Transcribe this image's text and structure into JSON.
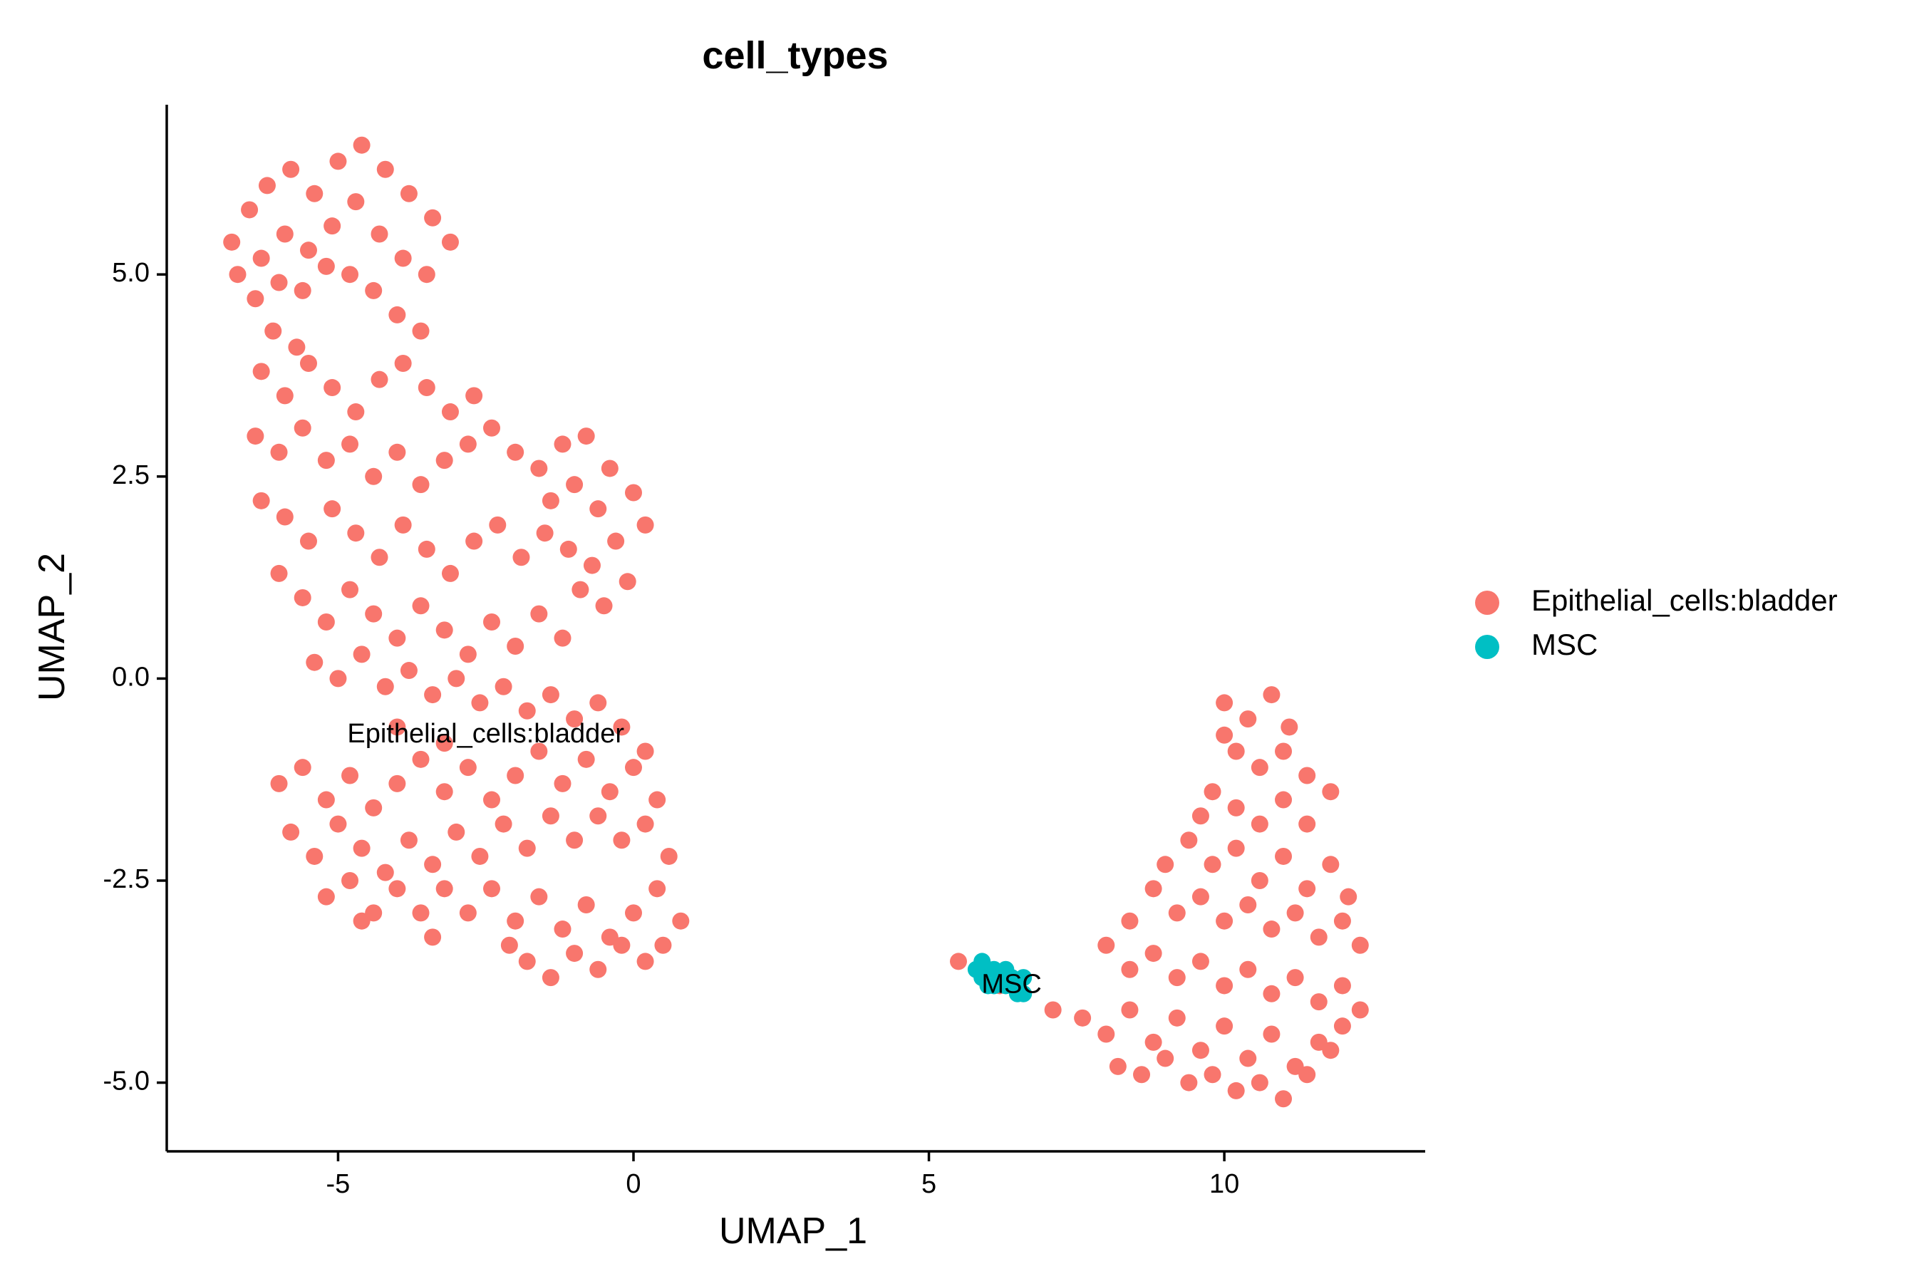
{
  "chart_data": {
    "type": "scatter",
    "title": "cell_types",
    "xlabel": "UMAP_1",
    "ylabel": "UMAP_2",
    "xlim": [
      -7.9,
      13.4
    ],
    "ylim": [
      -5.85,
      7.1
    ],
    "x_ticks": [
      {
        "value": -5,
        "label": "-5"
      },
      {
        "value": 0,
        "label": "0"
      },
      {
        "value": 5,
        "label": "5"
      },
      {
        "value": 10,
        "label": "10"
      }
    ],
    "y_ticks": [
      {
        "value": -5,
        "label": "-5.0"
      },
      {
        "value": -2.5,
        "label": "-2.5"
      },
      {
        "value": 0,
        "label": "0.0"
      },
      {
        "value": 2.5,
        "label": "2.5"
      },
      {
        "value": 5,
        "label": "5.0"
      }
    ],
    "grid": false,
    "legend_position": "right",
    "series": [
      {
        "name": "Epithelial_cells:bladder",
        "color": "#F8766D",
        "label": {
          "text": "Epithelial_cells:bladder",
          "x": -2.5,
          "y": -0.7
        },
        "points": [
          [
            -6.8,
            5.4
          ],
          [
            -6.5,
            5.8
          ],
          [
            -6.2,
            6.1
          ],
          [
            -5.8,
            6.3
          ],
          [
            -5.4,
            6.0
          ],
          [
            -5.0,
            6.4
          ],
          [
            -4.6,
            6.6
          ],
          [
            -4.2,
            6.3
          ],
          [
            -3.8,
            6.0
          ],
          [
            -3.4,
            5.7
          ],
          [
            -6.7,
            5.0
          ],
          [
            -6.3,
            5.2
          ],
          [
            -5.9,
            5.5
          ],
          [
            -5.5,
            5.3
          ],
          [
            -5.1,
            5.6
          ],
          [
            -4.7,
            5.9
          ],
          [
            -4.3,
            5.5
          ],
          [
            -3.9,
            5.2
          ],
          [
            -3.5,
            5.0
          ],
          [
            -3.1,
            5.4
          ],
          [
            -6.4,
            4.7
          ],
          [
            -6.0,
            4.9
          ],
          [
            -5.6,
            4.8
          ],
          [
            -5.2,
            5.1
          ],
          [
            -4.8,
            5.0
          ],
          [
            -4.4,
            4.8
          ],
          [
            -4.0,
            4.5
          ],
          [
            -3.6,
            4.3
          ],
          [
            -6.1,
            4.3
          ],
          [
            -5.7,
            4.1
          ],
          [
            -6.3,
            3.8
          ],
          [
            -5.9,
            3.5
          ],
          [
            -5.5,
            3.9
          ],
          [
            -5.1,
            3.6
          ],
          [
            -4.7,
            3.3
          ],
          [
            -4.3,
            3.7
          ],
          [
            -3.9,
            3.9
          ],
          [
            -3.5,
            3.6
          ],
          [
            -3.1,
            3.3
          ],
          [
            -2.7,
            3.5
          ],
          [
            -6.4,
            3.0
          ],
          [
            -6.0,
            2.8
          ],
          [
            -5.6,
            3.1
          ],
          [
            -5.2,
            2.7
          ],
          [
            -4.8,
            2.9
          ],
          [
            -4.4,
            2.5
          ],
          [
            -4.0,
            2.8
          ],
          [
            -3.6,
            2.4
          ],
          [
            -3.2,
            2.7
          ],
          [
            -2.8,
            2.9
          ],
          [
            -2.4,
            3.1
          ],
          [
            -2.0,
            2.8
          ],
          [
            -1.6,
            2.6
          ],
          [
            -1.2,
            2.9
          ],
          [
            -0.8,
            3.0
          ],
          [
            -0.4,
            2.6
          ],
          [
            0.0,
            2.3
          ],
          [
            -0.6,
            2.1
          ],
          [
            -1.0,
            2.4
          ],
          [
            -1.4,
            2.2
          ],
          [
            -6.3,
            2.2
          ],
          [
            -5.9,
            2.0
          ],
          [
            -5.5,
            1.7
          ],
          [
            -5.1,
            2.1
          ],
          [
            -4.7,
            1.8
          ],
          [
            -4.3,
            1.5
          ],
          [
            -3.9,
            1.9
          ],
          [
            -3.5,
            1.6
          ],
          [
            -3.1,
            1.3
          ],
          [
            -2.7,
            1.7
          ],
          [
            -2.3,
            1.9
          ],
          [
            -1.9,
            1.5
          ],
          [
            -1.5,
            1.8
          ],
          [
            -1.1,
            1.6
          ],
          [
            -0.7,
            1.4
          ],
          [
            -0.3,
            1.7
          ],
          [
            0.2,
            1.9
          ],
          [
            -0.1,
            1.2
          ],
          [
            -0.5,
            0.9
          ],
          [
            -0.9,
            1.1
          ],
          [
            -6.0,
            1.3
          ],
          [
            -5.6,
            1.0
          ],
          [
            -5.2,
            0.7
          ],
          [
            -4.8,
            1.1
          ],
          [
            -4.4,
            0.8
          ],
          [
            -4.0,
            0.5
          ],
          [
            -3.6,
            0.9
          ],
          [
            -3.2,
            0.6
          ],
          [
            -2.8,
            0.3
          ],
          [
            -2.4,
            0.7
          ],
          [
            -2.0,
            0.4
          ],
          [
            -1.6,
            0.8
          ],
          [
            -1.2,
            0.5
          ],
          [
            -5.4,
            0.2
          ],
          [
            -5.0,
            0.0
          ],
          [
            -4.6,
            0.3
          ],
          [
            -4.2,
            -0.1
          ],
          [
            -3.8,
            0.1
          ],
          [
            -3.4,
            -0.2
          ],
          [
            -3.0,
            0.0
          ],
          [
            -2.6,
            -0.3
          ],
          [
            -2.2,
            -0.1
          ],
          [
            -1.8,
            -0.4
          ],
          [
            -1.4,
            -0.2
          ],
          [
            -1.0,
            -0.5
          ],
          [
            -0.6,
            -0.3
          ],
          [
            -0.2,
            -0.6
          ],
          [
            0.2,
            -0.9
          ],
          [
            -4.0,
            -0.6
          ],
          [
            -3.2,
            -0.8
          ],
          [
            -6.0,
            -1.3
          ],
          [
            -5.6,
            -1.1
          ],
          [
            -5.2,
            -1.5
          ],
          [
            -4.8,
            -1.2
          ],
          [
            -4.4,
            -1.6
          ],
          [
            -4.0,
            -1.3
          ],
          [
            -3.6,
            -1.0
          ],
          [
            -3.2,
            -1.4
          ],
          [
            -2.8,
            -1.1
          ],
          [
            -2.4,
            -1.5
          ],
          [
            -2.0,
            -1.2
          ],
          [
            -1.6,
            -0.9
          ],
          [
            -1.2,
            -1.3
          ],
          [
            -0.8,
            -1.0
          ],
          [
            -0.4,
            -1.4
          ],
          [
            0.0,
            -1.1
          ],
          [
            0.4,
            -1.5
          ],
          [
            -5.8,
            -1.9
          ],
          [
            -5.4,
            -2.2
          ],
          [
            -5.0,
            -1.8
          ],
          [
            -4.6,
            -2.1
          ],
          [
            -4.2,
            -2.4
          ],
          [
            -3.8,
            -2.0
          ],
          [
            -3.4,
            -2.3
          ],
          [
            -3.0,
            -1.9
          ],
          [
            -2.6,
            -2.2
          ],
          [
            -2.2,
            -1.8
          ],
          [
            -1.8,
            -2.1
          ],
          [
            -1.4,
            -1.7
          ],
          [
            -1.0,
            -2.0
          ],
          [
            -0.6,
            -1.7
          ],
          [
            -0.2,
            -2.0
          ],
          [
            0.2,
            -1.8
          ],
          [
            0.6,
            -2.2
          ],
          [
            -5.2,
            -2.7
          ],
          [
            -4.8,
            -2.5
          ],
          [
            -4.4,
            -2.9
          ],
          [
            -4.0,
            -2.6
          ],
          [
            -3.6,
            -2.9
          ],
          [
            -3.2,
            -2.6
          ],
          [
            -2.8,
            -2.9
          ],
          [
            -2.4,
            -2.6
          ],
          [
            -2.0,
            -3.0
          ],
          [
            -1.6,
            -2.7
          ],
          [
            -1.2,
            -3.1
          ],
          [
            -0.8,
            -2.8
          ],
          [
            -0.4,
            -3.2
          ],
          [
            0.0,
            -2.9
          ],
          [
            0.4,
            -2.6
          ],
          [
            0.8,
            -3.0
          ],
          [
            -1.8,
            -3.5
          ],
          [
            -1.4,
            -3.7
          ],
          [
            -1.0,
            -3.4
          ],
          [
            -0.6,
            -3.6
          ],
          [
            -0.2,
            -3.3
          ],
          [
            0.2,
            -3.5
          ],
          [
            0.5,
            -3.3
          ],
          [
            -2.1,
            -3.3
          ],
          [
            -4.6,
            -3.0
          ],
          [
            -3.4,
            -3.2
          ],
          [
            5.5,
            -3.5
          ],
          [
            6.2,
            -3.8
          ],
          [
            7.1,
            -4.1
          ],
          [
            10.0,
            -0.3
          ],
          [
            10.4,
            -0.5
          ],
          [
            10.8,
            -0.2
          ],
          [
            11.1,
            -0.6
          ],
          [
            10.2,
            -0.9
          ],
          [
            10.6,
            -1.1
          ],
          [
            11.0,
            -0.9
          ],
          [
            11.4,
            -1.2
          ],
          [
            9.8,
            -1.4
          ],
          [
            10.2,
            -1.6
          ],
          [
            10.6,
            -1.8
          ],
          [
            11.0,
            -1.5
          ],
          [
            11.4,
            -1.8
          ],
          [
            11.8,
            -1.4
          ],
          [
            9.4,
            -2.0
          ],
          [
            9.8,
            -2.3
          ],
          [
            10.2,
            -2.1
          ],
          [
            10.6,
            -2.5
          ],
          [
            11.0,
            -2.2
          ],
          [
            11.4,
            -2.6
          ],
          [
            11.8,
            -2.3
          ],
          [
            12.1,
            -2.7
          ],
          [
            8.8,
            -2.6
          ],
          [
            9.2,
            -2.9
          ],
          [
            9.6,
            -2.7
          ],
          [
            10.0,
            -3.0
          ],
          [
            10.4,
            -2.8
          ],
          [
            10.8,
            -3.1
          ],
          [
            11.2,
            -2.9
          ],
          [
            11.6,
            -3.2
          ],
          [
            12.0,
            -3.0
          ],
          [
            12.3,
            -3.3
          ],
          [
            8.0,
            -3.3
          ],
          [
            8.4,
            -3.6
          ],
          [
            8.8,
            -3.4
          ],
          [
            9.2,
            -3.7
          ],
          [
            9.6,
            -3.5
          ],
          [
            10.0,
            -3.8
          ],
          [
            10.4,
            -3.6
          ],
          [
            10.8,
            -3.9
          ],
          [
            11.2,
            -3.7
          ],
          [
            11.6,
            -4.0
          ],
          [
            12.0,
            -3.8
          ],
          [
            12.3,
            -4.1
          ],
          [
            7.6,
            -4.2
          ],
          [
            8.0,
            -4.4
          ],
          [
            8.4,
            -4.1
          ],
          [
            8.8,
            -4.5
          ],
          [
            9.2,
            -4.2
          ],
          [
            9.6,
            -4.6
          ],
          [
            10.0,
            -4.3
          ],
          [
            10.4,
            -4.7
          ],
          [
            10.8,
            -4.4
          ],
          [
            11.2,
            -4.8
          ],
          [
            11.6,
            -4.5
          ],
          [
            12.0,
            -4.3
          ],
          [
            8.2,
            -4.8
          ],
          [
            8.6,
            -4.9
          ],
          [
            9.0,
            -4.7
          ],
          [
            9.4,
            -5.0
          ],
          [
            9.8,
            -4.9
          ],
          [
            10.2,
            -5.1
          ],
          [
            10.6,
            -5.0
          ],
          [
            11.0,
            -5.2
          ],
          [
            11.4,
            -4.9
          ],
          [
            11.8,
            -4.6
          ],
          [
            8.4,
            -3.0
          ],
          [
            9.0,
            -2.3
          ],
          [
            9.6,
            -1.7
          ],
          [
            10.0,
            -0.7
          ]
        ]
      },
      {
        "name": "MSC",
        "color": "#00BFC4",
        "label": {
          "text": "MSC",
          "x": 6.4,
          "y": -3.8
        },
        "points": [
          [
            5.8,
            -3.6
          ],
          [
            5.9,
            -3.7
          ],
          [
            6.0,
            -3.6
          ],
          [
            6.1,
            -3.8
          ],
          [
            6.2,
            -3.7
          ],
          [
            6.3,
            -3.8
          ],
          [
            6.4,
            -3.7
          ],
          [
            6.5,
            -3.8
          ],
          [
            6.6,
            -3.7
          ],
          [
            6.6,
            -3.9
          ],
          [
            6.5,
            -3.9
          ],
          [
            6.0,
            -3.8
          ],
          [
            5.9,
            -3.5
          ],
          [
            6.1,
            -3.6
          ],
          [
            6.3,
            -3.6
          ]
        ]
      }
    ]
  }
}
